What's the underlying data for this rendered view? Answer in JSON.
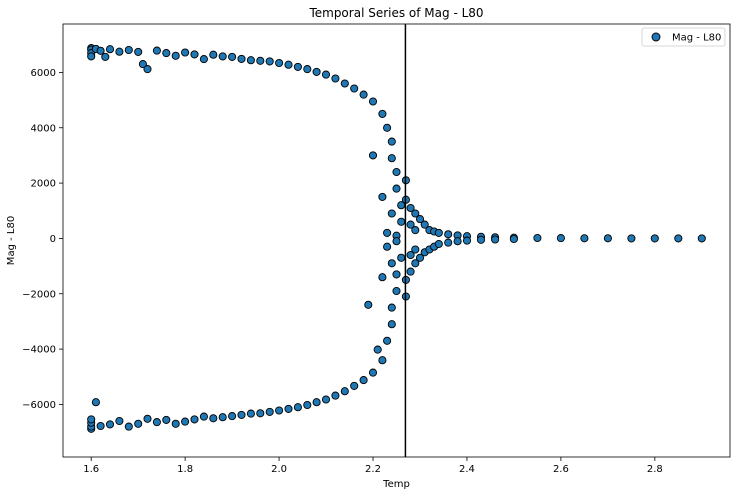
{
  "chart_data": {
    "type": "scatter",
    "title": "Temporal Series of Mag - L80",
    "xlabel": "Temp",
    "ylabel": "Mag - L80",
    "xlim": [
      1.54,
      2.96
    ],
    "ylim": [
      -7900,
      7750
    ],
    "xticks": [
      1.6,
      1.8,
      2.0,
      2.2,
      2.4,
      2.6,
      2.8
    ],
    "xtick_labels": [
      "1.6",
      "1.8",
      "2.0",
      "2.2",
      "2.4",
      "2.6",
      "2.8"
    ],
    "yticks": [
      -6000,
      -4000,
      -2000,
      0,
      2000,
      4000,
      6000
    ],
    "ytick_labels": [
      "−6000",
      "−4000",
      "−2000",
      "0",
      "2000",
      "4000",
      "6000"
    ],
    "grid": false,
    "legend": {
      "position": "top-right",
      "entries": [
        "Mag - L80"
      ]
    },
    "marker_color": "#1f77b4",
    "marker_edge_color": "#000000",
    "vline": {
      "x": 2.269,
      "color": "#000000"
    },
    "series": [
      {
        "name": "Mag - L80",
        "points": [
          [
            1.6,
            6880
          ],
          [
            1.6,
            6820
          ],
          [
            1.6,
            6700
          ],
          [
            1.6,
            6580
          ],
          [
            1.61,
            6850
          ],
          [
            1.62,
            6780
          ],
          [
            1.63,
            6560
          ],
          [
            1.64,
            6840
          ],
          [
            1.66,
            6750
          ],
          [
            1.68,
            6810
          ],
          [
            1.7,
            6740
          ],
          [
            1.71,
            6300
          ],
          [
            1.72,
            6120
          ],
          [
            1.74,
            6790
          ],
          [
            1.76,
            6700
          ],
          [
            1.78,
            6600
          ],
          [
            1.8,
            6720
          ],
          [
            1.82,
            6650
          ],
          [
            1.84,
            6480
          ],
          [
            1.86,
            6640
          ],
          [
            1.88,
            6580
          ],
          [
            1.9,
            6560
          ],
          [
            1.92,
            6490
          ],
          [
            1.94,
            6440
          ],
          [
            1.96,
            6420
          ],
          [
            1.98,
            6400
          ],
          [
            2.0,
            6340
          ],
          [
            2.02,
            6280
          ],
          [
            2.04,
            6200
          ],
          [
            2.06,
            6120
          ],
          [
            2.08,
            6020
          ],
          [
            2.1,
            5920
          ],
          [
            2.12,
            5780
          ],
          [
            2.14,
            5600
          ],
          [
            2.16,
            5420
          ],
          [
            2.18,
            5200
          ],
          [
            2.2,
            4950
          ],
          [
            2.22,
            4500
          ],
          [
            2.23,
            4000
          ],
          [
            2.24,
            3500
          ],
          [
            2.24,
            2900
          ],
          [
            2.25,
            2400
          ],
          [
            2.25,
            1800
          ],
          [
            2.26,
            1200
          ],
          [
            2.26,
            600
          ],
          [
            1.6,
            -6880
          ],
          [
            1.6,
            -6800
          ],
          [
            1.6,
            -6660
          ],
          [
            1.6,
            -6540
          ],
          [
            1.61,
            -5920
          ],
          [
            1.62,
            -6780
          ],
          [
            1.64,
            -6720
          ],
          [
            1.66,
            -6600
          ],
          [
            1.68,
            -6800
          ],
          [
            1.7,
            -6700
          ],
          [
            1.72,
            -6520
          ],
          [
            1.74,
            -6640
          ],
          [
            1.76,
            -6560
          ],
          [
            1.78,
            -6700
          ],
          [
            1.8,
            -6620
          ],
          [
            1.82,
            -6540
          ],
          [
            1.84,
            -6440
          ],
          [
            1.86,
            -6500
          ],
          [
            1.88,
            -6460
          ],
          [
            1.9,
            -6420
          ],
          [
            1.92,
            -6380
          ],
          [
            1.94,
            -6330
          ],
          [
            1.96,
            -6320
          ],
          [
            1.98,
            -6270
          ],
          [
            2.0,
            -6220
          ],
          [
            2.02,
            -6160
          ],
          [
            2.04,
            -6100
          ],
          [
            2.06,
            -6020
          ],
          [
            2.08,
            -5920
          ],
          [
            2.1,
            -5820
          ],
          [
            2.12,
            -5680
          ],
          [
            2.14,
            -5520
          ],
          [
            2.16,
            -5330
          ],
          [
            2.18,
            -5120
          ],
          [
            2.2,
            -4850
          ],
          [
            2.21,
            -4020
          ],
          [
            2.22,
            -4400
          ],
          [
            2.23,
            -3700
          ],
          [
            2.24,
            -3100
          ],
          [
            2.24,
            -2500
          ],
          [
            2.25,
            -1900
          ],
          [
            2.25,
            -1300
          ],
          [
            2.26,
            -700
          ],
          [
            2.19,
            -2400
          ],
          [
            2.2,
            3000
          ],
          [
            2.22,
            1500
          ],
          [
            2.22,
            -1400
          ],
          [
            2.23,
            200
          ],
          [
            2.23,
            -300
          ],
          [
            2.24,
            900
          ],
          [
            2.24,
            -900
          ],
          [
            2.25,
            100
          ],
          [
            2.25,
            -100
          ],
          [
            2.27,
            2100
          ],
          [
            2.27,
            -2100
          ],
          [
            2.27,
            1400
          ],
          [
            2.27,
            -1500
          ],
          [
            2.28,
            1100
          ],
          [
            2.28,
            -1200
          ],
          [
            2.28,
            500
          ],
          [
            2.28,
            -600
          ],
          [
            2.29,
            900
          ],
          [
            2.29,
            -900
          ],
          [
            2.29,
            300
          ],
          [
            2.29,
            -400
          ],
          [
            2.3,
            700
          ],
          [
            2.3,
            -700
          ],
          [
            2.31,
            500
          ],
          [
            2.31,
            -500
          ],
          [
            2.32,
            300
          ],
          [
            2.32,
            -400
          ],
          [
            2.33,
            250
          ],
          [
            2.33,
            -300
          ],
          [
            2.34,
            200
          ],
          [
            2.34,
            -200
          ],
          [
            2.36,
            150
          ],
          [
            2.36,
            -150
          ],
          [
            2.38,
            110
          ],
          [
            2.38,
            -100
          ],
          [
            2.4,
            80
          ],
          [
            2.4,
            -80
          ],
          [
            2.43,
            60
          ],
          [
            2.43,
            -50
          ],
          [
            2.46,
            40
          ],
          [
            2.46,
            -40
          ],
          [
            2.5,
            25
          ],
          [
            2.5,
            -20
          ],
          [
            2.55,
            15
          ],
          [
            2.6,
            10
          ],
          [
            2.65,
            5
          ],
          [
            2.7,
            5
          ],
          [
            2.75,
            0
          ],
          [
            2.8,
            0
          ],
          [
            2.85,
            0
          ],
          [
            2.9,
            0
          ]
        ]
      }
    ]
  }
}
